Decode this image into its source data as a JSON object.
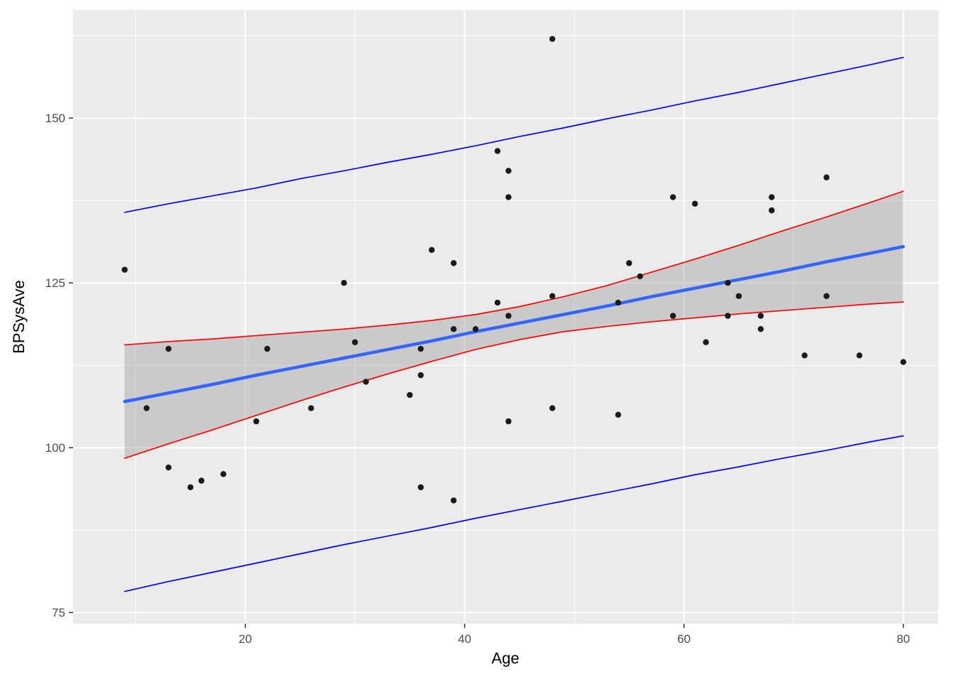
{
  "chart_data": {
    "type": "scatter",
    "title": "",
    "xlabel": "Age",
    "ylabel": "BPSysAve",
    "xlim": [
      4.3,
      83.2
    ],
    "ylim": [
      73.3,
      166.4
    ],
    "x_ticks": [
      20,
      40,
      60,
      80
    ],
    "y_ticks": [
      75,
      100,
      125,
      150
    ],
    "x_minor_ticks": [
      10,
      30,
      50,
      70
    ],
    "y_minor_ticks": [
      87.5,
      112.5,
      137.5,
      162.5
    ],
    "grid": true,
    "legend": "none",
    "points": [
      [
        9,
        127
      ],
      [
        11,
        106
      ],
      [
        13,
        115
      ],
      [
        13,
        97
      ],
      [
        15,
        94
      ],
      [
        16,
        95
      ],
      [
        18,
        96
      ],
      [
        21,
        104
      ],
      [
        22,
        115
      ],
      [
        26,
        106
      ],
      [
        29,
        125
      ],
      [
        30,
        116
      ],
      [
        31,
        110
      ],
      [
        35,
        108
      ],
      [
        36,
        115
      ],
      [
        36,
        111
      ],
      [
        36,
        94
      ],
      [
        37,
        130
      ],
      [
        39,
        128
      ],
      [
        39,
        118
      ],
      [
        39,
        92
      ],
      [
        41,
        118
      ],
      [
        43,
        145
      ],
      [
        43,
        122
      ],
      [
        44,
        142
      ],
      [
        44,
        138
      ],
      [
        44,
        120
      ],
      [
        44,
        104
      ],
      [
        48,
        162
      ],
      [
        48,
        123
      ],
      [
        48,
        106
      ],
      [
        54,
        122
      ],
      [
        54,
        105
      ],
      [
        55,
        128
      ],
      [
        56,
        126
      ],
      [
        59,
        138
      ],
      [
        59,
        120
      ],
      [
        61,
        137
      ],
      [
        62,
        116
      ],
      [
        64,
        125
      ],
      [
        64,
        120
      ],
      [
        65,
        123
      ],
      [
        67,
        120
      ],
      [
        67,
        118
      ],
      [
        68,
        136
      ],
      [
        68,
        138
      ],
      [
        71,
        114
      ],
      [
        73,
        141
      ],
      [
        73,
        123
      ],
      [
        76,
        114
      ],
      [
        80,
        113
      ]
    ],
    "regression_line": {
      "name": "fitted-regression-line",
      "color": "#3366FF",
      "x": [
        9,
        13,
        17,
        21,
        25,
        29,
        33,
        37,
        41,
        45,
        49,
        53,
        57,
        61,
        65,
        69,
        73,
        77,
        80
      ],
      "y": [
        107.0,
        108.3,
        109.6,
        111.0,
        112.3,
        113.6,
        114.9,
        116.2,
        117.6,
        118.9,
        120.2,
        121.5,
        122.9,
        124.2,
        125.5,
        126.8,
        128.2,
        129.5,
        130.5
      ]
    },
    "confidence_band": {
      "name": "confidence-interval",
      "line_color": "#FF0000",
      "fill_color": "#999999",
      "fill_opacity": 0.4,
      "x": [
        9,
        13,
        17,
        21,
        25,
        29,
        33,
        37,
        41,
        45,
        49,
        53,
        57,
        61,
        65,
        69,
        73,
        77,
        80
      ],
      "upper": [
        115.6,
        116.1,
        116.5,
        117.0,
        117.5,
        118.0,
        118.6,
        119.3,
        120.2,
        121.4,
        122.9,
        124.6,
        126.6,
        128.6,
        130.7,
        132.9,
        135.0,
        137.2,
        138.9
      ],
      "lower": [
        98.4,
        100.6,
        102.7,
        104.9,
        107.1,
        109.2,
        111.2,
        113.1,
        114.9,
        116.4,
        117.6,
        118.4,
        119.1,
        119.7,
        120.3,
        120.8,
        121.3,
        121.8,
        122.1
      ]
    },
    "prediction_band": {
      "name": "prediction-interval",
      "line_color": "#0000FF",
      "x": [
        9,
        13,
        17,
        21,
        25,
        29,
        33,
        37,
        41,
        45,
        49,
        53,
        57,
        61,
        65,
        69,
        73,
        77,
        80
      ],
      "upper": [
        135.7,
        137.0,
        138.2,
        139.4,
        140.8,
        142.0,
        143.3,
        144.5,
        145.8,
        147.2,
        148.5,
        149.9,
        151.2,
        152.6,
        153.9,
        155.3,
        156.7,
        158.1,
        159.2
      ],
      "lower": [
        78.2,
        79.7,
        81.1,
        82.5,
        83.9,
        85.3,
        86.6,
        87.9,
        89.3,
        90.6,
        91.9,
        93.2,
        94.5,
        95.9,
        97.1,
        98.4,
        99.6,
        100.9,
        101.8
      ]
    },
    "colors": {
      "panel_bg": "#EBEBEB",
      "grid": "#FFFFFF",
      "tick_label": "#4D4D4D",
      "axis_title": "#000000",
      "point": "#1A1A1A",
      "tick_mark": "#333333"
    }
  }
}
